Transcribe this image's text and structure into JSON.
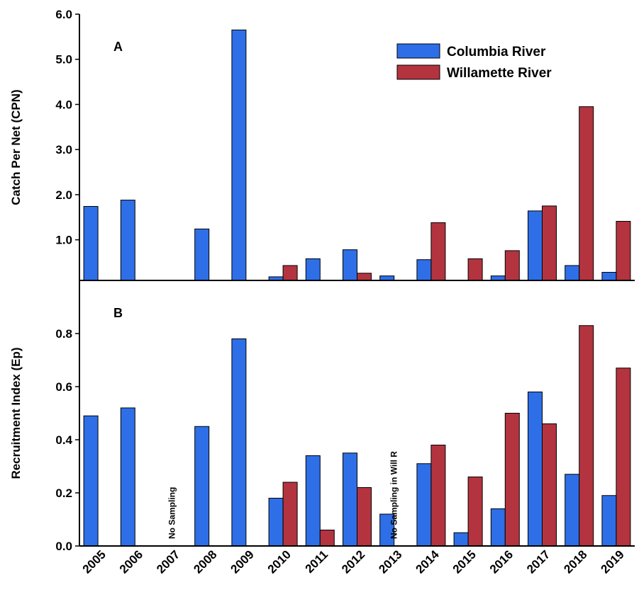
{
  "chart_data": {
    "type": "bar",
    "categories": [
      "2005",
      "2006",
      "2007",
      "2008",
      "2009",
      "2010",
      "2011",
      "2012",
      "2013",
      "2014",
      "2015",
      "2016",
      "2017",
      "2018",
      "2019"
    ],
    "panels": [
      {
        "panel_label": "A",
        "y_label": "Catch Per Net (CPN)",
        "ylim": [
          0.1,
          6.0
        ],
        "yticks": [
          {
            "value": 1,
            "label": "1.0"
          },
          {
            "value": 2,
            "label": "2.0"
          },
          {
            "value": 3,
            "label": "3.0"
          },
          {
            "value": 4,
            "label": "4.0"
          },
          {
            "value": 5,
            "label": "5.0"
          },
          {
            "value": 6,
            "label": "6.0"
          }
        ],
        "legend": "upper right",
        "series": [
          {
            "name": "Columbia River",
            "color": "#2e6fe8",
            "values": [
              1.74,
              1.88,
              null,
              1.24,
              5.65,
              0.18,
              0.58,
              0.78,
              0.2,
              0.56,
              null,
              0.2,
              1.64,
              0.43,
              0.28
            ]
          },
          {
            "name": "Willamette River",
            "color": "#b3343f",
            "values": [
              null,
              null,
              null,
              null,
              null,
              0.43,
              null,
              0.26,
              null,
              1.38,
              0.58,
              0.76,
              1.75,
              3.95,
              1.41
            ]
          }
        ]
      },
      {
        "panel_label": "B",
        "y_label": "Recruitment Index (Ep)",
        "ylim": [
          0,
          1.0
        ],
        "yticks": [
          {
            "value": 0,
            "label": "0.0"
          },
          0.2,
          0.4,
          0.6,
          0.8
        ],
        "series": [
          {
            "color": "#2e6fe8",
            "values": [
              0.49,
              0.52,
              null,
              0.45,
              0.78,
              0.18,
              0.34,
              0.35,
              0.12,
              0.31,
              0.05,
              0.14,
              0.58,
              0.27,
              0.19
            ]
          },
          {
            "color": "#b3343f",
            "values": [
              null,
              null,
              null,
              null,
              null,
              0.24,
              0.06,
              0.22,
              null,
              0.38,
              0.26,
              0.5,
              0.46,
              0.83,
              0.67
            ]
          }
        ],
        "annotations": [
          {
            "text": "No Sampling",
            "category": "2007"
          },
          {
            "text": "No Sampling in Will R",
            "category": "2013"
          }
        ]
      }
    ]
  }
}
